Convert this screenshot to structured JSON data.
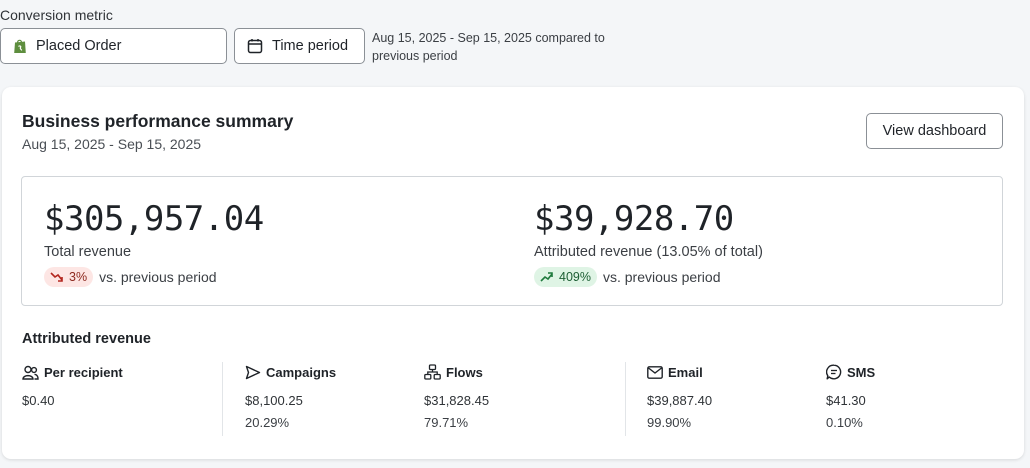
{
  "filters": {
    "metric_label": "Conversion metric",
    "metric_value": "Placed Order",
    "metric_icon": "shopify-bag-icon",
    "time_button_label": "Time period",
    "time_icon": "calendar-icon",
    "period_note": "Aug 15, 2025 - Sep 15, 2025 compared to previous period"
  },
  "summary": {
    "title": "Business performance summary",
    "date_range": "Aug 15, 2025 - Sep 15, 2025",
    "view_dashboard_label": "View dashboard",
    "total_revenue": {
      "value": "$305,957.04",
      "label": "Total revenue",
      "change": "3%",
      "direction": "down",
      "change_suffix": "vs. previous period"
    },
    "attributed_revenue": {
      "value": "$39,928.70",
      "label": "Attributed revenue (13.05% of total)",
      "change": "409%",
      "direction": "up",
      "change_suffix": "vs. previous period"
    }
  },
  "attributed": {
    "title": "Attributed revenue",
    "metrics": [
      {
        "label": "Per recipient",
        "icon": "people-icon",
        "value": "$0.40",
        "pct": ""
      },
      {
        "label": "Campaigns",
        "icon": "send-icon",
        "value": "$8,100.25",
        "pct": "20.29%"
      },
      {
        "label": "Flows",
        "icon": "flow-icon",
        "value": "$31,828.45",
        "pct": "79.71%"
      },
      {
        "label": "Email",
        "icon": "envelope-icon",
        "value": "$39,887.40",
        "pct": "99.90%"
      },
      {
        "label": "SMS",
        "icon": "chat-icon",
        "value": "$41.30",
        "pct": "0.10%"
      }
    ]
  },
  "colors": {
    "down_bg": "#fde6e4",
    "down_fg": "#8e2a20",
    "up_bg": "#dff4e5",
    "up_fg": "#1d5e34",
    "shopify_green": "#5e8e3e"
  }
}
